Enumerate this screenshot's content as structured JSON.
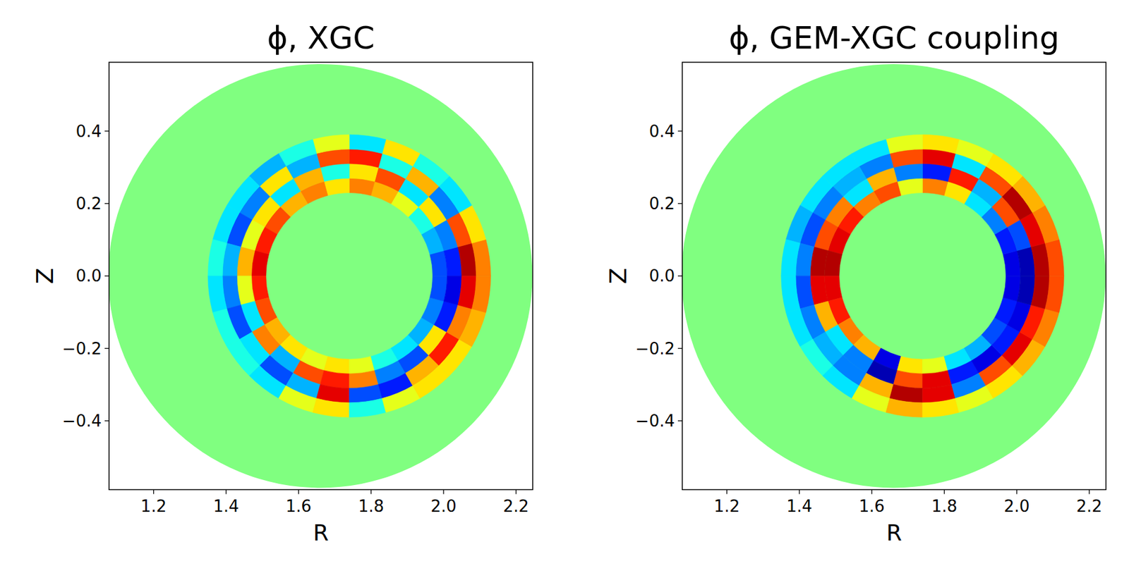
{
  "chart_data": [
    {
      "type": "heatmap",
      "title": "ϕ, XGC",
      "xlabel": "R",
      "ylabel": "Z",
      "xlim": [
        1.077,
        2.246
      ],
      "ylim": [
        -0.59,
        0.59
      ],
      "xticks": [
        1.2,
        1.4,
        1.6,
        1.8,
        {
          "value": 2,
          "label": "2.0"
        },
        2.2
      ],
      "yticks": [
        {
          "value": -0.4,
          "label": "−0.4"
        },
        {
          "value": -0.2,
          "label": "−0.2"
        },
        {
          "value": 0,
          "label": "0.0"
        },
        0.2,
        0.4
      ],
      "clim": [
        -1,
        1
      ],
      "boundary": {
        "center": [
          1.66,
          0
        ],
        "radius": 0.585,
        "value": 0
      },
      "center": [
        1.74,
        0
      ],
      "r": [
        0.25,
        0.29,
        0.33,
        0.37
      ],
      "theta": [
        7.5,
        22.5,
        37.5,
        52.5,
        67.5,
        82.5,
        97.5,
        112.5,
        127.5,
        142.5,
        157.5,
        172.5,
        187.5,
        202.5,
        217.5,
        232.5,
        247.5,
        262.5,
        277.5,
        292.5,
        307.5,
        322.5,
        337.5,
        352.5
      ],
      "cells": [
        [
          -0.6,
          -0.4,
          -0.2,
          0.2,
          0.4,
          0.5,
          0.3,
          0.5,
          0.4,
          0.6,
          0.7,
          0.8,
          0.7,
          0.6,
          0.4,
          0.3,
          0.2,
          0.3,
          0.2,
          -0.2,
          -0.3,
          -0.4,
          -0.5,
          -0.6
        ],
        [
          -0.7,
          -0.5,
          0.3,
          -0.3,
          0.6,
          0.3,
          -0.2,
          0.4,
          -0.3,
          0.3,
          0.2,
          0.4,
          0.2,
          -0.3,
          0.5,
          -0.4,
          0.6,
          0.7,
          0.5,
          -0.5,
          -0.6,
          0.3,
          -0.7,
          -0.8
        ],
        [
          0.9,
          0.6,
          -0.5,
          0.4,
          -0.2,
          0.7,
          0.6,
          -0.4,
          0.3,
          -0.5,
          -0.6,
          -0.4,
          -0.5,
          -0.6,
          -0.3,
          -0.6,
          -0.4,
          0.8,
          -0.6,
          -0.7,
          0.4,
          0.7,
          0.5,
          0.8
        ],
        [
          0.5,
          0.3,
          -0.3,
          -0.2,
          0.3,
          -0.3,
          0.2,
          -0.2,
          -0.4,
          -0.3,
          -0.3,
          -0.2,
          -0.3,
          -0.2,
          -0.2,
          -0.3,
          0.2,
          0.3,
          -0.2,
          0.2,
          0.3,
          0.3,
          0.4,
          0.5
        ]
      ]
    },
    {
      "type": "heatmap",
      "title": "ϕ, GEM-XGC coupling",
      "xlabel": "R",
      "ylabel": "Z",
      "xlim": [
        1.077,
        2.246
      ],
      "ylim": [
        -0.59,
        0.59
      ],
      "xticks": [
        1.2,
        1.4,
        1.6,
        1.8,
        {
          "value": 2,
          "label": "2.0"
        },
        2.2
      ],
      "yticks": [
        {
          "value": -0.4,
          "label": "−0.4"
        },
        {
          "value": -0.2,
          "label": "−0.2"
        },
        {
          "value": 0,
          "label": "0.0"
        },
        0.2,
        0.4
      ],
      "clim": [
        -1,
        1
      ],
      "boundary": {
        "center": [
          1.66,
          0
        ],
        "radius": 0.585,
        "value": 0
      },
      "center": [
        1.74,
        0
      ],
      "r": [
        0.25,
        0.29,
        0.33,
        0.37
      ],
      "theta": [
        7.5,
        22.5,
        37.5,
        52.5,
        67.5,
        82.5,
        97.5,
        112.5,
        127.5,
        142.5,
        157.5,
        172.5,
        187.5,
        202.5,
        217.5,
        232.5,
        247.5,
        262.5,
        277.5,
        292.5,
        307.5,
        322.5,
        337.5,
        352.5
      ],
      "cells": [
        [
          -0.8,
          -0.7,
          -0.5,
          -0.3,
          0.3,
          0.5,
          0.2,
          0.6,
          0.5,
          0.7,
          0.8,
          0.9,
          0.8,
          0.7,
          0.5,
          0.4,
          -0.8,
          0.3,
          0.2,
          -0.3,
          -0.4,
          -0.6,
          -0.7,
          -0.8
        ],
        [
          -0.9,
          -0.6,
          0.6,
          -0.4,
          0.7,
          -0.7,
          -0.5,
          0.4,
          -0.3,
          0.5,
          0.6,
          0.9,
          0.8,
          0.4,
          -0.3,
          -0.5,
          -0.9,
          0.6,
          0.8,
          -0.7,
          -0.8,
          -0.7,
          -0.8,
          -0.9
        ],
        [
          0.9,
          0.8,
          0.9,
          0.6,
          -0.3,
          0.8,
          0.6,
          -0.5,
          -0.4,
          -0.5,
          -0.6,
          -0.5,
          -0.6,
          -0.5,
          -0.4,
          -0.5,
          0.4,
          0.9,
          0.8,
          -0.5,
          0.6,
          0.8,
          0.7,
          0.9
        ],
        [
          0.6,
          0.5,
          0.4,
          0.3,
          0.2,
          0.3,
          0.2,
          -0.3,
          -0.3,
          -0.3,
          -0.4,
          -0.3,
          -0.3,
          -0.3,
          -0.2,
          -0.3,
          0.2,
          0.4,
          0.3,
          0.2,
          0.3,
          0.4,
          0.5,
          0.6
        ]
      ]
    }
  ]
}
